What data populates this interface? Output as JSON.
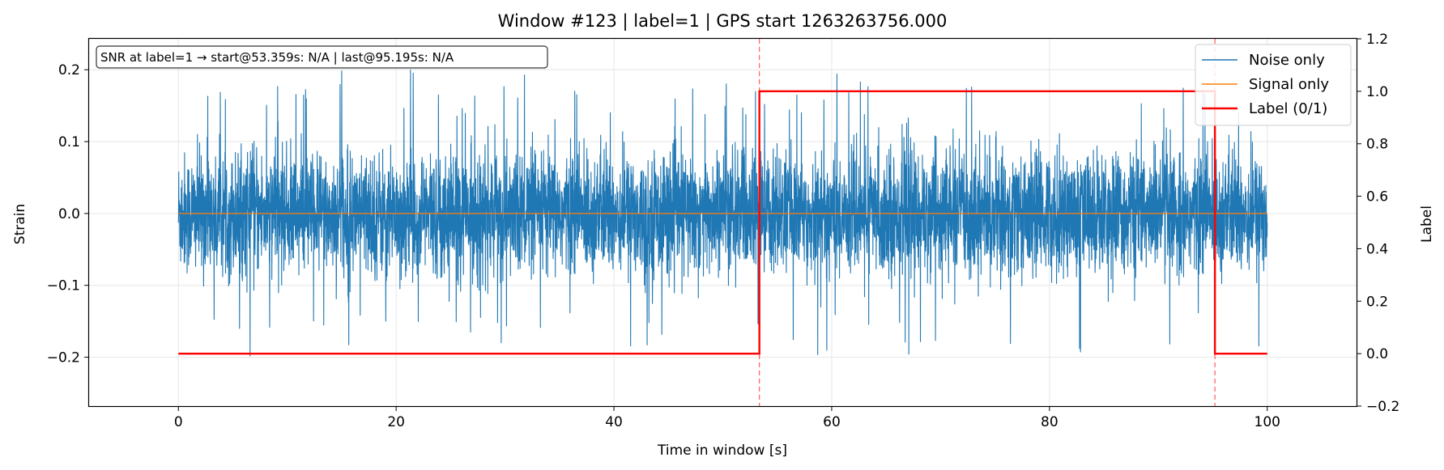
{
  "chart_data": {
    "type": "line",
    "title": "Window #123  |  label=1  |  GPS start 1263263756.000",
    "xlabel": "Time in window [s]",
    "ylabel_left": "Strain",
    "ylabel_right": "Label",
    "xlim": [
      -8.2,
      108.2
    ],
    "ylim_left": [
      -0.268,
      0.243
    ],
    "ylim_right": [
      -0.2,
      1.2
    ],
    "x_ticks": [
      0,
      20,
      40,
      60,
      80,
      100
    ],
    "x_tick_labels": [
      "0",
      "20",
      "40",
      "60",
      "80",
      "100"
    ],
    "y_left_ticks": [
      -0.2,
      -0.1,
      0.0,
      0.1,
      0.2
    ],
    "y_left_tick_labels": [
      "−0.2",
      "−0.1",
      "0.0",
      "0.1",
      "0.2"
    ],
    "y_right_ticks": [
      -0.2,
      0.0,
      0.2,
      0.4,
      0.6,
      0.8,
      1.0,
      1.2
    ],
    "y_right_tick_labels": [
      "−0.2",
      "0.0",
      "0.2",
      "0.4",
      "0.6",
      "0.8",
      "1.0",
      "1.2"
    ],
    "grid": true,
    "legend_position": "top-right",
    "annotation": "SNR at label=1 → start@53.359s: N/A | last@95.195s: N/A",
    "series": [
      {
        "name": "Noise only",
        "axis": "left",
        "color": "#1f77b4",
        "style": "dense noise, x 0 to 100 s, bulk amplitude about ±0.1 with peaks near ±0.2",
        "x_range": [
          0,
          100
        ],
        "typical_amplitude": 0.1,
        "max_positive": 0.2,
        "min_negative": -0.24
      },
      {
        "name": "Signal only",
        "axis": "left",
        "color": "#ff7f0e",
        "x": [
          0,
          100
        ],
        "y": [
          0.0,
          0.0
        ]
      },
      {
        "name": "Label (0/1)",
        "axis": "right",
        "color": "#ff0000",
        "x": [
          0,
          53.359,
          53.359,
          95.195,
          95.195,
          100
        ],
        "y": [
          0,
          0,
          1,
          1,
          0,
          0
        ]
      }
    ],
    "vlines": [
      53.359,
      95.195
    ],
    "vline_color": "#ff0000"
  }
}
